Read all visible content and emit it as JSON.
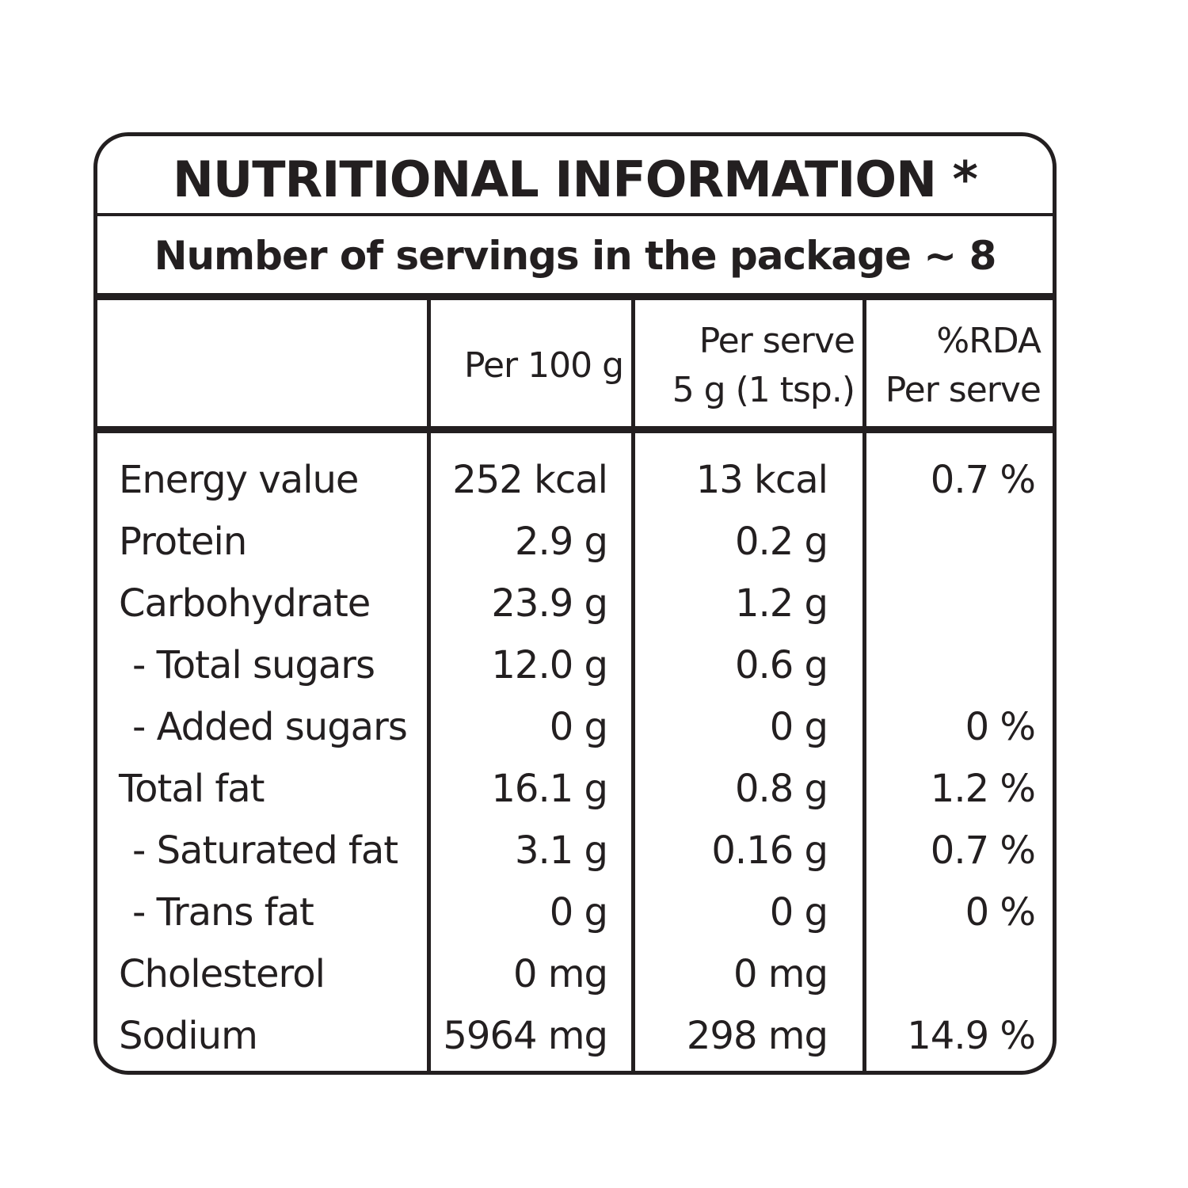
{
  "title": "NUTRITIONAL INFORMATION *",
  "servings": "Number of servings in the package ~ 8",
  "columns": {
    "per100": "Per 100 g",
    "serve_line1": "Per serve",
    "serve_line2": "5 g (1 tsp.)",
    "rda_line1": "%RDA",
    "rda_line2": "Per serve"
  },
  "rows": [
    {
      "name": "Energy value",
      "indent": false,
      "per100": "252 kcal",
      "serve": "13 kcal",
      "rda": "0.7 %"
    },
    {
      "name": "Protein",
      "indent": false,
      "per100": "2.9 g",
      "serve": "0.2 g",
      "rda": ""
    },
    {
      "name": "Carbohydrate",
      "indent": false,
      "per100": "23.9 g",
      "serve": "1.2 g",
      "rda": ""
    },
    {
      "name": "- Total sugars",
      "indent": true,
      "per100": "12.0 g",
      "serve": "0.6 g",
      "rda": ""
    },
    {
      "name": "- Added sugars",
      "indent": true,
      "per100": "0 g",
      "serve": "0 g",
      "rda": "0 %"
    },
    {
      "name": "Total fat",
      "indent": false,
      "per100": "16.1 g",
      "serve": "0.8 g",
      "rda": "1.2 %"
    },
    {
      "name": "- Saturated fat",
      "indent": true,
      "per100": "3.1 g",
      "serve": "0.16 g",
      "rda": "0.7 %"
    },
    {
      "name": "- Trans fat",
      "indent": true,
      "per100": "0 g",
      "serve": "0 g",
      "rda": "0 %"
    },
    {
      "name": "Cholesterol",
      "indent": false,
      "per100": "0 mg",
      "serve": "0 mg",
      "rda": ""
    },
    {
      "name": "Sodium",
      "indent": false,
      "per100": "5964 mg",
      "serve": "298 mg",
      "rda": "14.9 %"
    }
  ]
}
